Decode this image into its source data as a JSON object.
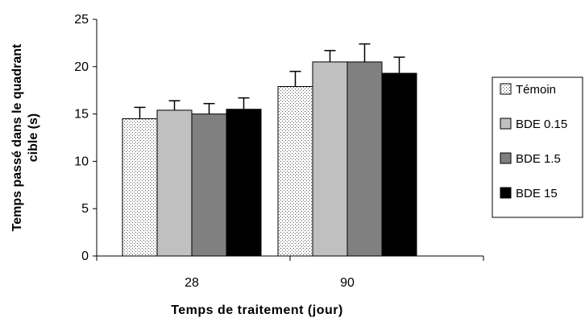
{
  "chart_data": {
    "type": "bar",
    "categories": [
      "28",
      "90"
    ],
    "series": [
      {
        "name": "Témoin",
        "values": [
          14.5,
          17.9
        ],
        "errors": [
          1.2,
          1.6
        ],
        "fill": "dotted",
        "color": "#ffffff"
      },
      {
        "name": "BDE 0.15",
        "values": [
          15.4,
          20.5
        ],
        "errors": [
          1.0,
          1.2
        ],
        "fill": "solid",
        "color": "#c0c0c0"
      },
      {
        "name": "BDE 1.5",
        "values": [
          15.0,
          20.5
        ],
        "errors": [
          1.1,
          1.9
        ],
        "fill": "solid",
        "color": "#808080"
      },
      {
        "name": "BDE 15",
        "values": [
          15.5,
          19.3
        ],
        "errors": [
          1.2,
          1.7
        ],
        "fill": "solid",
        "color": "#000000"
      }
    ],
    "xlabel": "Temps de traitement (jour)",
    "ylabel_lines": [
      "Temps passé dans le quadrant",
      "cible (s)"
    ],
    "ylim": [
      0,
      25
    ],
    "yticks": [
      0,
      5,
      10,
      15,
      20,
      25
    ],
    "grid": false,
    "legend_position": "right"
  }
}
